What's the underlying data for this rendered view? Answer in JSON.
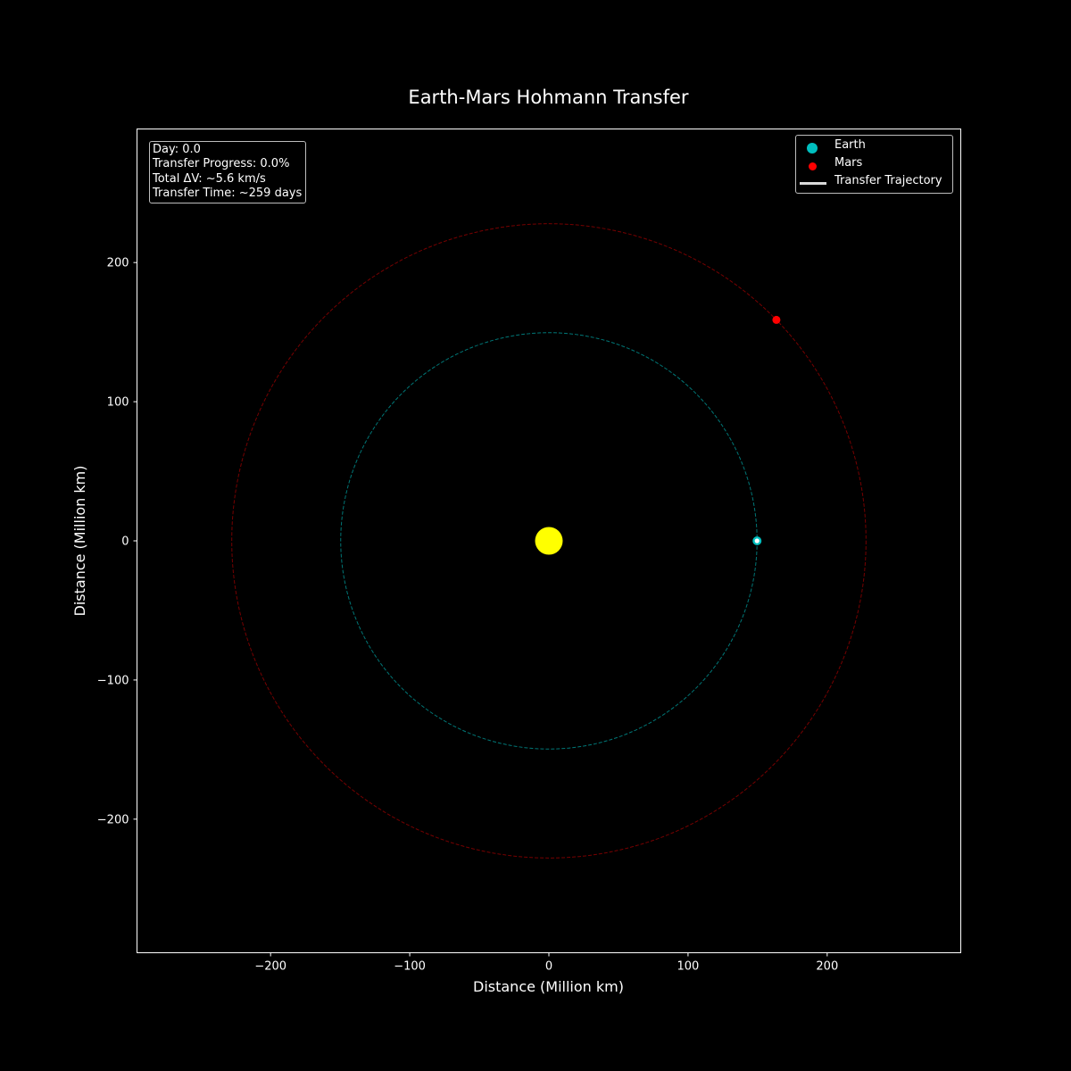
{
  "chart_data": {
    "type": "scatter",
    "title": "Earth-Mars Hohmann Transfer",
    "xlabel": "Distance (Million km)",
    "ylabel": "Distance (Million km)",
    "xlim": [
      -296,
      296
    ],
    "ylim": [
      -296,
      296
    ],
    "xticks": [
      -200,
      -100,
      0,
      100,
      200
    ],
    "yticks": [
      -200,
      -100,
      0,
      100,
      200
    ],
    "xtick_labels": [
      "−200",
      "−100",
      "0",
      "100",
      "200"
    ],
    "ytick_labels": [
      "−200",
      "−100",
      "0",
      "100",
      "200"
    ],
    "grid": false,
    "legend_position": "top-right",
    "sun": {
      "x": 0,
      "y": 0,
      "color": "#ffff00"
    },
    "orbits": [
      {
        "body": "Earth",
        "radius": 149.6,
        "color": "#008b8b",
        "style": "dashed"
      },
      {
        "body": "Mars",
        "radius": 227.9,
        "color": "#8b0000",
        "style": "dashed"
      }
    ],
    "series": [
      {
        "name": "Earth",
        "x": 149.6,
        "y": 0,
        "color": "#00bfbf"
      },
      {
        "name": "Mars",
        "x": 163.5,
        "y": 158.8,
        "color": "#ff0000"
      }
    ],
    "spacecraft": {
      "x": 149.6,
      "y": 0,
      "color": "#ffffff"
    },
    "trajectory": {
      "name": "Transfer Trajectory",
      "color": "#d9d9d9"
    }
  },
  "info": {
    "day": "Day: 0.0",
    "progress": "Transfer Progress: 0.0%",
    "delta_v": "Total ΔV: ~5.6 km/s",
    "transfer_time": "Transfer Time: ~259 days"
  }
}
